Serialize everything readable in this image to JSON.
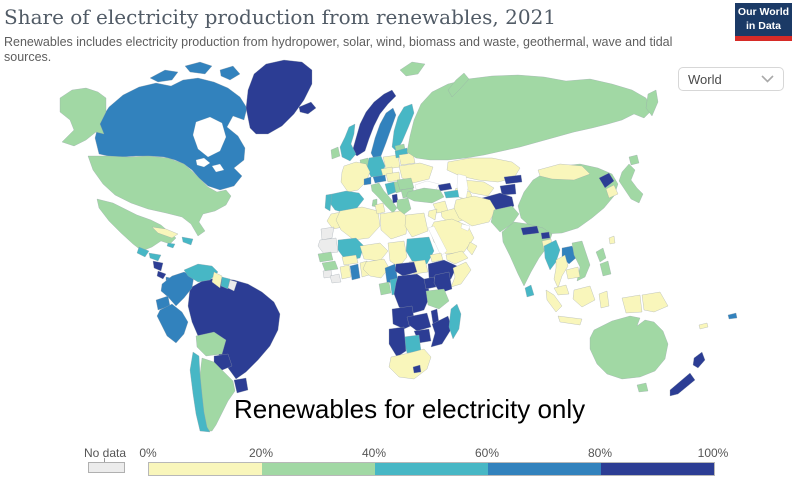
{
  "header": {
    "title": "Share of electricity production from renewables, 2021",
    "subtitle": "Renewables includes electricity production from hydropower, solar, wind, biomass and waste, geothermal, wave and tidal sources."
  },
  "logo": {
    "line1": "Our World",
    "line2": "in Data",
    "bg_color": "#1b3a66",
    "accent_color": "#d62b27"
  },
  "controls": {
    "region_selector": {
      "value": "World"
    }
  },
  "annotation": "Renewables for electricity only",
  "chart_data": {
    "type": "choropleth_map",
    "title": "Share of electricity production from renewables, 2021",
    "year": 2021,
    "unit": "% of electricity production",
    "legend": {
      "position": "bottom",
      "no_data": {
        "label": "No data",
        "color": "#ececec"
      },
      "tick_labels": [
        "0%",
        "20%",
        "40%",
        "60%",
        "80%",
        "100%"
      ],
      "bins": [
        {
          "label": "0-20%",
          "color": "#f9f6bb"
        },
        {
          "label": "20-40%",
          "color": "#a1d8a4"
        },
        {
          "label": "40-60%",
          "color": "#47b7c5"
        },
        {
          "label": "60-80%",
          "color": "#3282bd"
        },
        {
          "label": "80-100%",
          "color": "#2c3d94"
        }
      ]
    },
    "countries": {
      "Canada": "60-80%",
      "United States": "20-40%",
      "Greenland": "80-100%",
      "Iceland": "80-100%",
      "Mexico": "20-40%",
      "Cuba": "0-20%",
      "Jamaica": "40-60%",
      "Dominican Republic": "40-60%",
      "Guatemala": "40-60%",
      "Honduras": "40-60%",
      "Nicaragua": "80-100%",
      "Costa Rica": "80-100%",
      "Panama": "60-80%",
      "Colombia": "60-80%",
      "Venezuela": "40-60%",
      "Guyana": "0-20%",
      "Suriname": "40-60%",
      "French Guiana": "No data",
      "Ecuador": "60-80%",
      "Peru": "60-80%",
      "Brazil": "80-100%",
      "Bolivia": "20-40%",
      "Paraguay": "80-100%",
      "Uruguay": "80-100%",
      "Argentina": "20-40%",
      "Chile": "40-60%",
      "Norway": "80-100%",
      "Sweden": "60-80%",
      "Finland": "40-60%",
      "Denmark": "60-80%",
      "United Kingdom": "40-60%",
      "Ireland": "20-40%",
      "Netherlands": "20-40%",
      "Germany": "40-60%",
      "Poland": "0-20%",
      "Belarus": "0-20%",
      "Estonia": "20-40%",
      "Latvia": "40-60%",
      "Ukraine": "0-20%",
      "Czechia": "0-20%",
      "Hungary": "0-20%",
      "France": "0-20%",
      "Switzerland": "60-80%",
      "Austria": "60-80%",
      "Italy": "20-40%",
      "Spain": "40-60%",
      "Portugal": "40-60%",
      "Croatia": "40-60%",
      "Serbia": "20-40%",
      "Albania": "80-100%",
      "Greece": "20-40%",
      "Romania": "20-40%",
      "Bulgaria": "20-40%",
      "Russia": "20-40%",
      "Svalbard": "20-40%",
      "Kazakhstan": "0-20%",
      "Uzbekistan": "0-20%",
      "Turkmenistan": "0-20%",
      "Kyrgyzstan": "80-100%",
      "Tajikistan": "80-100%",
      "Afghanistan": "80-100%",
      "Georgia": "80-100%",
      "Armenia": "40-60%",
      "Turkey": "20-40%",
      "Syria": "0-20%",
      "Jordan": "0-20%",
      "Iraq": "0-20%",
      "Iran": "0-20%",
      "Saudi Arabia": "0-20%",
      "Yemen": "0-20%",
      "Oman": "0-20%",
      "Pakistan": "20-40%",
      "India": "20-40%",
      "Nepal": "80-100%",
      "Bhutan": "80-100%",
      "Bangladesh": "0-20%",
      "Sri Lanka": "40-60%",
      "China": "20-40%",
      "Mongolia": "0-20%",
      "North Korea": "80-100%",
      "South Korea": "0-20%",
      "Japan": "20-40%",
      "Taiwan": "0-20%",
      "Myanmar": "40-60%",
      "Thailand": "0-20%",
      "Laos": "60-80%",
      "Vietnam": "20-40%",
      "Cambodia": "0-20%",
      "Malaysia": "0-20%",
      "Indonesia": "0-20%",
      "Papua New Guinea": "0-20%",
      "Philippines": "20-40%",
      "Morocco": "0-20%",
      "Western Sahara": "No data",
      "Mauritania": "No data",
      "Algeria": "0-20%",
      "Tunisia": "0-20%",
      "Libya": "0-20%",
      "Egypt": "0-20%",
      "Mali": "40-60%",
      "Senegal": "20-40%",
      "Guinea": "20-40%",
      "Sierra Leone": "No data",
      "Liberia": "No data",
      "Ivory Coast": "0-20%",
      "Ghana": "60-80%",
      "Togo": "0-20%",
      "Burkina Faso": "0-20%",
      "Niger": "0-20%",
      "Chad": "0-20%",
      "Nigeria": "0-20%",
      "Sudan": "40-60%",
      "South Sudan": "0-20%",
      "Eritrea": "0-20%",
      "Ethiopia": "80-100%",
      "Somalia": "0-20%",
      "Cameroon": "60-80%",
      "Central African Republic": "80-100%",
      "Gabon": "20-40%",
      "Congo": "40-60%",
      "Democratic Republic of Congo": "80-100%",
      "Uganda": "80-100%",
      "Kenya": "80-100%",
      "Tanzania": "20-40%",
      "Angola": "80-100%",
      "Zambia": "80-100%",
      "Malawi": "80-100%",
      "Mozambique": "80-100%",
      "Zimbabwe": "80-100%",
      "Botswana": "40-60%",
      "Namibia": "80-100%",
      "South Africa": "0-20%",
      "Lesotho": "80-100%",
      "Madagascar": "40-60%",
      "Australia": "20-40%",
      "New Zealand": "80-100%",
      "Fiji": "60-80%",
      "New Caledonia": "0-20%"
    }
  }
}
